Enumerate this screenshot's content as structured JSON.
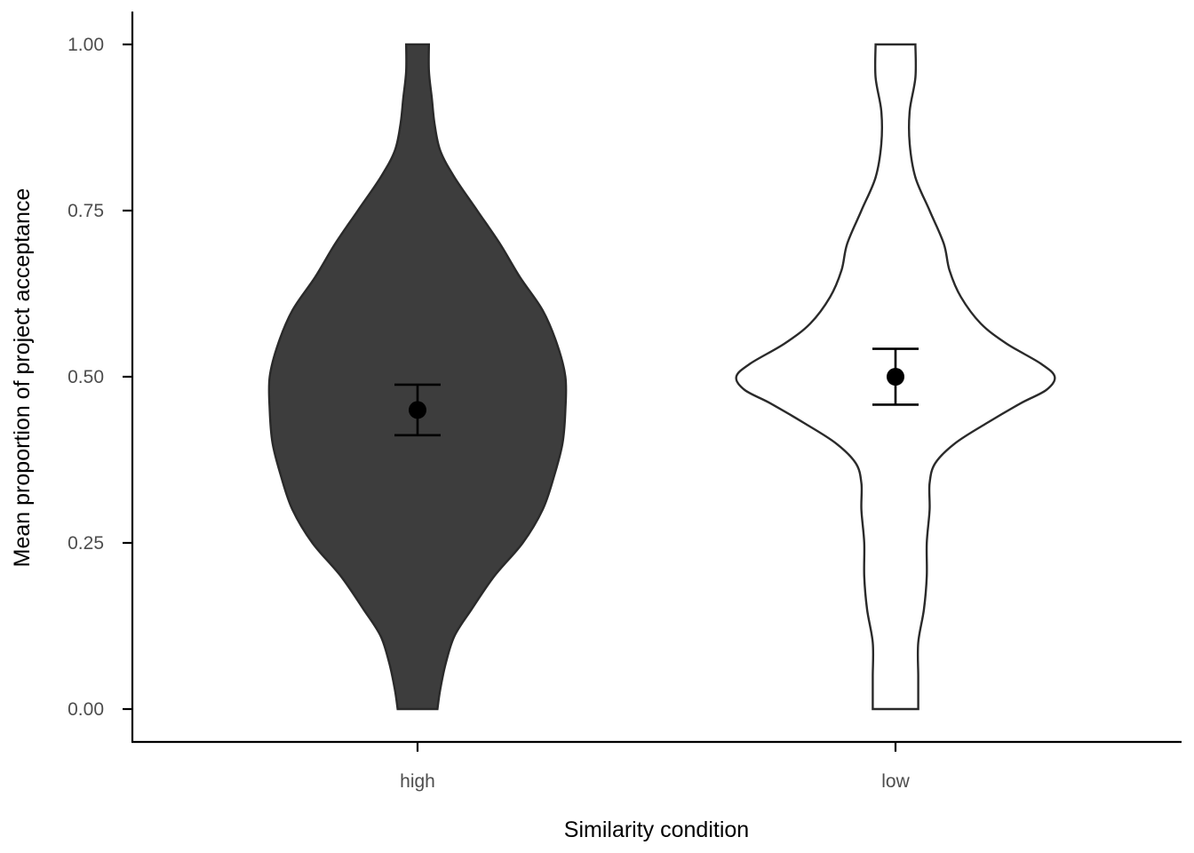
{
  "chart_data": {
    "type": "violin",
    "title": "",
    "xlabel": "Similarity condition",
    "ylabel": "Mean proportion of project acceptance",
    "ylim": [
      -0.05,
      1.05
    ],
    "y_ticks": [
      0.0,
      0.25,
      0.5,
      0.75,
      1.0
    ],
    "y_tick_labels": [
      "0.00",
      "0.25",
      "0.50",
      "0.75",
      "1.00"
    ],
    "categories": [
      "high",
      "low"
    ],
    "grid": false,
    "legend": "none",
    "series": [
      {
        "category": "high",
        "fill": "#3d3d3d",
        "mean": 0.45,
        "ci_lower": 0.412,
        "ci_upper": 0.488,
        "density_profile": [
          [
            0.0,
            0.07
          ],
          [
            0.03,
            0.08
          ],
          [
            0.07,
            0.1
          ],
          [
            0.11,
            0.13
          ],
          [
            0.15,
            0.19
          ],
          [
            0.2,
            0.27
          ],
          [
            0.25,
            0.37
          ],
          [
            0.3,
            0.44
          ],
          [
            0.35,
            0.48
          ],
          [
            0.4,
            0.51
          ],
          [
            0.45,
            0.52
          ],
          [
            0.5,
            0.52
          ],
          [
            0.55,
            0.49
          ],
          [
            0.6,
            0.44
          ],
          [
            0.65,
            0.36
          ],
          [
            0.7,
            0.29
          ],
          [
            0.75,
            0.21
          ],
          [
            0.8,
            0.13
          ],
          [
            0.84,
            0.08
          ],
          [
            0.88,
            0.06
          ],
          [
            0.92,
            0.05
          ],
          [
            0.96,
            0.04
          ],
          [
            1.0,
            0.04
          ]
        ]
      },
      {
        "category": "low",
        "fill": "#ffffff",
        "mean": 0.5,
        "ci_lower": 0.458,
        "ci_upper": 0.542,
        "density_profile": [
          [
            0.0,
            0.08
          ],
          [
            0.02,
            0.08
          ],
          [
            0.05,
            0.08
          ],
          [
            0.1,
            0.08
          ],
          [
            0.15,
            0.1
          ],
          [
            0.2,
            0.11
          ],
          [
            0.25,
            0.11
          ],
          [
            0.3,
            0.12
          ],
          [
            0.34,
            0.12
          ],
          [
            0.37,
            0.14
          ],
          [
            0.4,
            0.21
          ],
          [
            0.43,
            0.32
          ],
          [
            0.46,
            0.44
          ],
          [
            0.48,
            0.53
          ],
          [
            0.5,
            0.56
          ],
          [
            0.52,
            0.51
          ],
          [
            0.55,
            0.39
          ],
          [
            0.58,
            0.3
          ],
          [
            0.62,
            0.23
          ],
          [
            0.66,
            0.19
          ],
          [
            0.7,
            0.17
          ],
          [
            0.75,
            0.12
          ],
          [
            0.8,
            0.07
          ],
          [
            0.85,
            0.05
          ],
          [
            0.9,
            0.05
          ],
          [
            0.95,
            0.07
          ],
          [
            1.0,
            0.07
          ]
        ]
      }
    ]
  }
}
